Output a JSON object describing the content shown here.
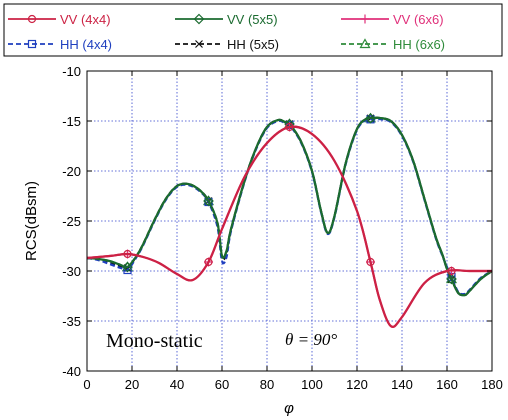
{
  "chart_data": {
    "type": "line",
    "xlabel": "φ",
    "ylabel": "RCS(dBsm)",
    "xlim": [
      0,
      180
    ],
    "ylim": [
      -40,
      -10
    ],
    "xticks": [
      0,
      20,
      40,
      60,
      80,
      100,
      120,
      140,
      160,
      180
    ],
    "yticks": [
      -40,
      -35,
      -30,
      -25,
      -20,
      -15,
      -10
    ],
    "grid": true,
    "grid_style": "dotted",
    "legend_position": "top",
    "annotations": [
      "Mono-static",
      "θ = 90°"
    ],
    "series": [
      {
        "name": "VV (4x4)",
        "color": "#cc2244",
        "dash": "solid",
        "marker": "circle",
        "x": [
          0,
          10,
          18,
          25,
          32,
          40,
          47,
          54,
          60,
          70,
          80,
          90,
          100,
          110,
          120,
          126,
          130,
          135,
          140,
          150,
          160,
          170,
          180
        ],
        "y": [
          -28.7,
          -28.5,
          -28.3,
          -28.6,
          -29.2,
          -30.3,
          -30.9,
          -29.1,
          -25.8,
          -20.6,
          -17.2,
          -15.6,
          -16.3,
          -19.0,
          -24.0,
          -29.1,
          -32.8,
          -35.5,
          -34.6,
          -31.2,
          -30.0,
          -30.0,
          -30.0
        ]
      },
      {
        "name": "VV (5x5)",
        "color": "#1b6b30",
        "dash": "solid",
        "marker": "diamond",
        "x": [
          0,
          5,
          10,
          15,
          18,
          22,
          25,
          30,
          35,
          40,
          45,
          50,
          54,
          58,
          60,
          62,
          64,
          70,
          75,
          80,
          85,
          88,
          90,
          95,
          100,
          104,
          107,
          110,
          115,
          120,
          124,
          127,
          130,
          135,
          140,
          145,
          150,
          155,
          158,
          160,
          162,
          165,
          168,
          170,
          175,
          180
        ],
        "y": [
          -28.7,
          -28.8,
          -29.0,
          -29.4,
          -29.6,
          -28.5,
          -27.3,
          -24.9,
          -22.8,
          -21.5,
          -21.3,
          -21.9,
          -23.0,
          -25.2,
          -28.5,
          -28.0,
          -25.8,
          -21.0,
          -17.8,
          -15.6,
          -14.9,
          -15.1,
          -15.3,
          -17.0,
          -20.0,
          -24.0,
          -26.2,
          -24.5,
          -19.2,
          -15.8,
          -14.8,
          -14.7,
          -14.7,
          -15.0,
          -16.4,
          -19.0,
          -22.8,
          -26.6,
          -28.4,
          -29.8,
          -30.8,
          -32.2,
          -32.4,
          -32.0,
          -30.8,
          -30.0
        ]
      },
      {
        "name": "VV (6x6)",
        "color": "#e0307a",
        "dash": "solid",
        "marker": "plus",
        "x": [
          0,
          10,
          18,
          25,
          32,
          40,
          47,
          54,
          60,
          70,
          80,
          90,
          100,
          110,
          120,
          126,
          130,
          135,
          140,
          150,
          160,
          170,
          180
        ],
        "y": [
          -28.7,
          -28.5,
          -28.3,
          -28.6,
          -29.2,
          -30.3,
          -30.9,
          -29.1,
          -25.8,
          -20.6,
          -17.2,
          -15.6,
          -16.3,
          -19.0,
          -24.0,
          -29.1,
          -32.8,
          -35.5,
          -34.6,
          -31.2,
          -30.0,
          -30.0,
          -30.0
        ]
      },
      {
        "name": "HH (4x4)",
        "color": "#1f3fbf",
        "dash": "dashed",
        "marker": "square",
        "x": [
          0,
          5,
          10,
          15,
          18,
          22,
          25,
          30,
          35,
          40,
          45,
          50,
          54,
          58,
          60,
          62,
          64,
          70,
          75,
          80,
          85,
          88,
          90,
          95,
          100,
          104,
          107,
          110,
          115,
          120,
          124,
          127,
          130,
          135,
          140,
          145,
          150,
          155,
          158,
          160,
          162,
          165,
          168,
          170,
          175,
          180
        ],
        "y": [
          -28.7,
          -28.9,
          -29.3,
          -29.7,
          -29.9,
          -28.6,
          -27.4,
          -25.0,
          -22.9,
          -21.6,
          -21.4,
          -22.0,
          -23.1,
          -25.6,
          -29.0,
          -28.6,
          -26.0,
          -21.1,
          -17.9,
          -15.7,
          -15.0,
          -15.2,
          -15.4,
          -17.1,
          -20.1,
          -24.1,
          -26.3,
          -24.6,
          -19.3,
          -15.9,
          -14.9,
          -14.8,
          -14.8,
          -15.1,
          -16.5,
          -19.1,
          -22.9,
          -26.7,
          -28.5,
          -29.6,
          -30.6,
          -32.1,
          -32.3,
          -31.9,
          -30.7,
          -30.0
        ]
      },
      {
        "name": "HH (5x5)",
        "color": "#111111",
        "dash": "dashed",
        "marker": "cross",
        "x": [
          0,
          5,
          10,
          15,
          18,
          22,
          25,
          30,
          35,
          40,
          45,
          50,
          54,
          58,
          60,
          62,
          64,
          70,
          75,
          80,
          85,
          88,
          90,
          95,
          100,
          104,
          107,
          110,
          115,
          120,
          124,
          127,
          130,
          135,
          140,
          145,
          150,
          155,
          158,
          160,
          162,
          165,
          168,
          170,
          175,
          180
        ],
        "y": [
          -28.7,
          -28.8,
          -29.1,
          -29.5,
          -29.7,
          -28.5,
          -27.3,
          -24.9,
          -22.8,
          -21.5,
          -21.3,
          -21.9,
          -23.0,
          -25.3,
          -28.7,
          -28.2,
          -25.9,
          -21.0,
          -17.8,
          -15.6,
          -14.9,
          -15.1,
          -15.3,
          -17.0,
          -20.0,
          -24.0,
          -26.2,
          -24.5,
          -19.2,
          -15.8,
          -14.8,
          -14.7,
          -14.7,
          -15.0,
          -16.4,
          -19.0,
          -22.8,
          -26.6,
          -28.4,
          -29.8,
          -30.8,
          -32.2,
          -32.4,
          -32.0,
          -30.8,
          -30.0
        ]
      },
      {
        "name": "HH (6x6)",
        "color": "#2e8b3a",
        "dash": "dashed",
        "marker": "triangle",
        "x": [
          0,
          5,
          10,
          15,
          18,
          22,
          25,
          30,
          35,
          40,
          45,
          50,
          54,
          58,
          60,
          62,
          64,
          70,
          75,
          80,
          85,
          88,
          90,
          95,
          100,
          104,
          107,
          110,
          115,
          120,
          124,
          127,
          130,
          135,
          140,
          145,
          150,
          155,
          158,
          160,
          162,
          165,
          168,
          170,
          175,
          180
        ],
        "y": [
          -28.7,
          -28.8,
          -29.0,
          -29.4,
          -29.6,
          -28.5,
          -27.3,
          -24.9,
          -22.8,
          -21.5,
          -21.3,
          -21.9,
          -23.0,
          -25.2,
          -28.5,
          -28.0,
          -25.8,
          -21.0,
          -17.8,
          -15.6,
          -14.9,
          -15.1,
          -15.3,
          -17.0,
          -20.0,
          -24.0,
          -26.2,
          -24.5,
          -19.2,
          -15.8,
          -14.8,
          -14.7,
          -14.7,
          -15.0,
          -16.4,
          -19.0,
          -22.8,
          -26.6,
          -28.4,
          -29.8,
          -30.8,
          -32.2,
          -32.4,
          -32.0,
          -30.8,
          -30.0
        ]
      }
    ],
    "markers": [
      {
        "series": 0,
        "x": [
          18,
          54,
          90,
          126,
          162
        ]
      },
      {
        "series": 1,
        "x": [
          18,
          54,
          90,
          126,
          162
        ]
      },
      {
        "series": 2,
        "x": [
          18,
          54,
          90,
          126,
          162
        ]
      },
      {
        "series": 3,
        "x": [
          18,
          54,
          90,
          126,
          162
        ]
      },
      {
        "series": 4,
        "x": [
          18,
          54,
          90,
          126,
          162
        ]
      },
      {
        "series": 5,
        "x": [
          18,
          54,
          90,
          126,
          162
        ]
      }
    ]
  }
}
